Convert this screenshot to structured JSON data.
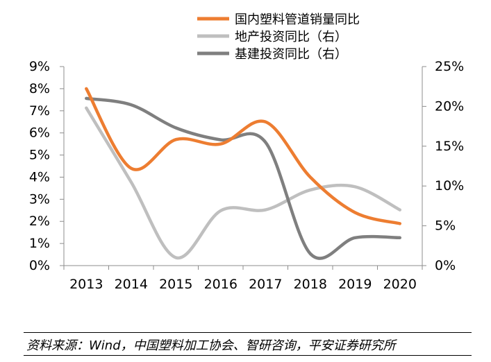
{
  "chart_data": {
    "type": "line",
    "categories": [
      "2013",
      "2014",
      "2015",
      "2016",
      "2017",
      "2018",
      "2019",
      "2020"
    ],
    "y_left": {
      "ticks": [
        "0%",
        "1%",
        "2%",
        "3%",
        "4%",
        "5%",
        "6%",
        "7%",
        "8%",
        "9%"
      ],
      "ylim": [
        0,
        9
      ],
      "unit": "%"
    },
    "y_right": {
      "ticks": [
        "0%",
        "5%",
        "10%",
        "15%",
        "20%",
        "25%"
      ],
      "ylim": [
        0,
        25
      ],
      "unit": "%"
    },
    "series": [
      {
        "name": "国内塑料管道销量同比",
        "axis": "left",
        "color": "#ED7D31",
        "values": [
          8.0,
          4.4,
          5.7,
          5.5,
          6.5,
          4.0,
          2.4,
          1.9
        ]
      },
      {
        "name": "地产投资同比（右）",
        "axis": "right",
        "color": "#BFBFBF",
        "values": [
          19.8,
          10.5,
          1.0,
          6.9,
          7.0,
          9.5,
          9.9,
          7.0
        ]
      },
      {
        "name": "基建投资同比（右）",
        "axis": "right",
        "color": "#7F7F7F",
        "values": [
          21.0,
          20.2,
          17.3,
          15.8,
          15.5,
          1.5,
          3.5,
          3.5
        ]
      }
    ],
    "grid": false,
    "legend_position": "top-right",
    "smooth": true
  },
  "source": "资料来源：Wind，中国塑料加工协会、智研咨询，平安证券研究所"
}
